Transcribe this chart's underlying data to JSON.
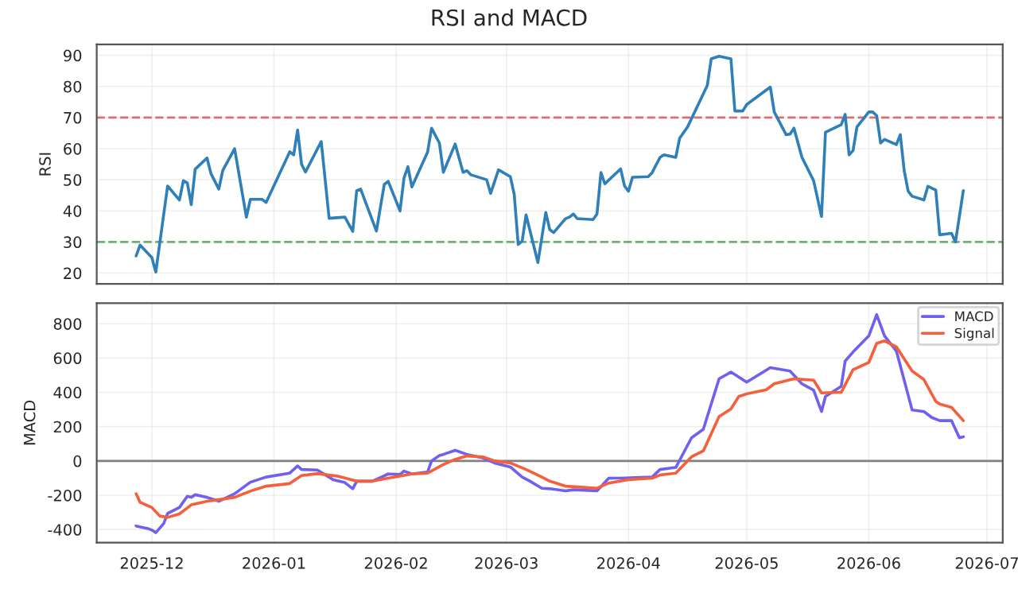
{
  "chart_data": [
    {
      "type": "line",
      "title": "RSI and MACD",
      "ylabel": "RSI",
      "grid": true,
      "tick_labels": "y",
      "xlim": [
        "2025-11-17",
        "2026-07-05"
      ],
      "ylim": [
        16.5,
        93.5
      ],
      "yticks": [
        20,
        30,
        40,
        50,
        60,
        70,
        80,
        90
      ],
      "xticks": [
        {
          "value": "2025-12-01",
          "label": null
        },
        {
          "value": "2026-01-01",
          "label": null
        },
        {
          "value": "2026-02-01",
          "label": null
        },
        {
          "value": "2026-03-01",
          "label": null
        },
        {
          "value": "2026-04-01",
          "label": null
        },
        {
          "value": "2026-05-01",
          "label": null
        },
        {
          "value": "2026-06-01",
          "label": null
        },
        {
          "value": "2026-07-01",
          "label": null
        }
      ],
      "ref_lines": [
        {
          "axis": "y",
          "value": 70,
          "color": "#d9706f",
          "line_style": "dashed"
        },
        {
          "axis": "y",
          "value": 30,
          "color": "#6fb06f",
          "line_style": "dashed"
        }
      ],
      "series": [
        {
          "color": "#2f80b8",
          "x": [
            "2025-11-27",
            "2025-11-28",
            "2025-12-01",
            "2025-12-02",
            "2025-12-05",
            "2025-12-08",
            "2025-12-09",
            "2025-12-10",
            "2025-12-11",
            "2025-12-12",
            "2025-12-15",
            "2025-12-16",
            "2025-12-18",
            "2025-12-19",
            "2025-12-22",
            "2025-12-25",
            "2025-12-26",
            "2025-12-29",
            "2025-12-30",
            "2026-01-05",
            "2026-01-06",
            "2026-01-07",
            "2026-01-08",
            "2026-01-09",
            "2026-01-13",
            "2026-01-15",
            "2026-01-19",
            "2026-01-21",
            "2026-01-22",
            "2026-01-23",
            "2026-01-27",
            "2026-01-29",
            "2026-01-30",
            "2026-02-02",
            "2026-02-03",
            "2026-02-04",
            "2026-02-05",
            "2026-02-09",
            "2026-02-10",
            "2026-02-12",
            "2026-02-13",
            "2026-02-16",
            "2026-02-18",
            "2026-02-19",
            "2026-02-20",
            "2026-02-24",
            "2026-02-25",
            "2026-02-27",
            "2026-03-02",
            "2026-03-03",
            "2026-03-04",
            "2026-03-05",
            "2026-03-06",
            "2026-03-09",
            "2026-03-11",
            "2026-03-12",
            "2026-03-13",
            "2026-03-16",
            "2026-03-17",
            "2026-03-18",
            "2026-03-19",
            "2026-03-23",
            "2026-03-24",
            "2026-03-25",
            "2026-03-26",
            "2026-03-30",
            "2026-03-31",
            "2026-04-01",
            "2026-04-02",
            "2026-04-06",
            "2026-04-07",
            "2026-04-09",
            "2026-04-10",
            "2026-04-13",
            "2026-04-14",
            "2026-04-16",
            "2026-04-21",
            "2026-04-22",
            "2026-04-24",
            "2026-04-27",
            "2026-04-28",
            "2026-04-30",
            "2026-05-01",
            "2026-05-07",
            "2026-05-08",
            "2026-05-11",
            "2026-05-12",
            "2026-05-13",
            "2026-05-15",
            "2026-05-18",
            "2026-05-20",
            "2026-05-21",
            "2026-05-25",
            "2026-05-26",
            "2026-05-27",
            "2026-05-28",
            "2026-05-29",
            "2026-06-01",
            "2026-06-02",
            "2026-06-03",
            "2026-06-04",
            "2026-06-05",
            "2026-06-08",
            "2026-06-09",
            "2026-06-10",
            "2026-06-11",
            "2026-06-12",
            "2026-06-15",
            "2026-06-16",
            "2026-06-18",
            "2026-06-19",
            "2026-06-22",
            "2026-06-23",
            "2026-06-25"
          ],
          "values": [
            25.5,
            29,
            25,
            20.3,
            48,
            43.5,
            49.7,
            49,
            42,
            53.4,
            57,
            52,
            47,
            53,
            60,
            38,
            43.7,
            43.7,
            42.7,
            59,
            58,
            66,
            55,
            52.5,
            62.3,
            37.6,
            38,
            33.4,
            46.5,
            47,
            33.5,
            48.5,
            49.5,
            40,
            50.5,
            54.2,
            47.7,
            58.9,
            66.6,
            61.8,
            52.4,
            61.5,
            52.4,
            52.9,
            51.6,
            50,
            45.6,
            53.2,
            51,
            45.2,
            29.2,
            30.3,
            38.7,
            23.4,
            39.5,
            34,
            33,
            37.5,
            38,
            39,
            37.5,
            37.2,
            39,
            52.3,
            48.7,
            53.5,
            48,
            46.3,
            50.8,
            51,
            52.3,
            57.2,
            58,
            57.2,
            63.4,
            67,
            80.3,
            88.9,
            89.7,
            88.9,
            72.1,
            72.1,
            74.2,
            79.8,
            71.8,
            64.5,
            64.7,
            66.6,
            57.3,
            49.7,
            38.2,
            65.3,
            67.7,
            71,
            58,
            59.4,
            67,
            71.8,
            71.8,
            70.6,
            61.8,
            63,
            61.3,
            64.5,
            52.8,
            46.3,
            44.7,
            43.5,
            47.9,
            46.7,
            32.3,
            32.8,
            30,
            46.5
          ]
        }
      ]
    },
    {
      "type": "line",
      "ylabel": "MACD",
      "grid": true,
      "legend": "top right",
      "xlim": [
        "2025-11-17",
        "2026-07-05"
      ],
      "ylim": [
        -476,
        920
      ],
      "yticks": [
        -400,
        -200,
        0,
        200,
        400,
        600,
        800
      ],
      "xticks": [
        {
          "value": "2025-12-01",
          "label": "2025-12"
        },
        {
          "value": "2026-01-01",
          "label": "2026-01"
        },
        {
          "value": "2026-02-01",
          "label": "2026-02"
        },
        {
          "value": "2026-03-01",
          "label": "2026-03"
        },
        {
          "value": "2026-04-01",
          "label": "2026-04"
        },
        {
          "value": "2026-05-01",
          "label": "2026-05"
        },
        {
          "value": "2026-06-01",
          "label": "2026-06"
        },
        {
          "value": "2026-07-01",
          "label": "2026-07"
        }
      ],
      "ref_lines": [
        {
          "axis": "y",
          "value": 0,
          "color": "#808080",
          "line_style": "solid"
        }
      ],
      "series": [
        {
          "name": "MACD",
          "color": "#7060f0",
          "x": [
            "2025-11-27",
            "2025-11-30",
            "2025-12-01",
            "2025-12-02",
            "2025-12-04",
            "2025-12-05",
            "2025-12-08",
            "2025-12-10",
            "2025-12-11",
            "2025-12-12",
            "2025-12-15",
            "2025-12-18",
            "2025-12-22",
            "2025-12-26",
            "2025-12-30",
            "2026-01-05",
            "2026-01-07",
            "2026-01-08",
            "2026-01-12",
            "2026-01-16",
            "2026-01-19",
            "2026-01-21",
            "2026-01-22",
            "2026-01-26",
            "2026-01-30",
            "2026-02-02",
            "2026-02-03",
            "2026-02-05",
            "2026-02-09",
            "2026-02-10",
            "2026-02-12",
            "2026-02-13",
            "2026-02-16",
            "2026-02-19",
            "2026-02-23",
            "2026-02-26",
            "2026-03-02",
            "2026-03-05",
            "2026-03-07",
            "2026-03-10",
            "2026-03-12",
            "2026-03-16",
            "2026-03-18",
            "2026-03-24",
            "2026-03-27",
            "2026-03-30",
            "2026-04-07",
            "2026-04-09",
            "2026-04-13",
            "2026-04-17",
            "2026-04-20",
            "2026-04-24",
            "2026-04-27",
            "2026-05-01",
            "2026-05-07",
            "2026-05-12",
            "2026-05-15",
            "2026-05-18",
            "2026-05-20",
            "2026-05-21",
            "2026-05-25",
            "2026-05-26",
            "2026-05-28",
            "2026-06-01",
            "2026-06-03",
            "2026-06-05",
            "2026-06-08",
            "2026-06-12",
            "2026-06-15",
            "2026-06-17",
            "2026-06-19",
            "2026-06-22",
            "2026-06-24",
            "2026-06-25"
          ],
          "values": [
            -379,
            -394,
            -403,
            -418,
            -365,
            -306,
            -271,
            -206,
            -212,
            -197,
            -212,
            -235,
            -191,
            -124,
            -94,
            -71,
            -29,
            -50,
            -53,
            -109,
            -126,
            -162,
            -118,
            -118,
            -76,
            -79,
            -59,
            -76,
            -65,
            0,
            32,
            38,
            62,
            38,
            18,
            -12,
            -35,
            -94,
            -118,
            -159,
            -162,
            -174,
            -168,
            -174,
            -100,
            -100,
            -94,
            -50,
            -38,
            135,
            185,
            479,
            518,
            459,
            544,
            524,
            450,
            412,
            288,
            376,
            435,
            582,
            635,
            729,
            853,
            729,
            641,
            297,
            288,
            253,
            235,
            235,
            135,
            141
          ]
        },
        {
          "name": "Signal",
          "color": "#f5603c",
          "x": [
            "2025-11-27",
            "2025-11-28",
            "2025-12-01",
            "2025-12-03",
            "2025-12-05",
            "2025-12-08",
            "2025-12-11",
            "2025-12-15",
            "2025-12-18",
            "2025-12-22",
            "2025-12-26",
            "2025-12-30",
            "2026-01-05",
            "2026-01-08",
            "2026-01-12",
            "2026-01-17",
            "2026-01-22",
            "2026-01-26",
            "2026-01-30",
            "2026-02-05",
            "2026-02-09",
            "2026-02-13",
            "2026-02-16",
            "2026-02-19",
            "2026-02-23",
            "2026-02-26",
            "2026-03-02",
            "2026-03-06",
            "2026-03-10",
            "2026-03-12",
            "2026-03-16",
            "2026-03-20",
            "2026-03-24",
            "2026-03-27",
            "2026-04-01",
            "2026-04-07",
            "2026-04-09",
            "2026-04-13",
            "2026-04-17",
            "2026-04-20",
            "2026-04-24",
            "2026-04-27",
            "2026-04-29",
            "2026-05-01",
            "2026-05-06",
            "2026-05-08",
            "2026-05-13",
            "2026-05-18",
            "2026-05-20",
            "2026-05-25",
            "2026-05-28",
            "2026-06-01",
            "2026-06-03",
            "2026-06-05",
            "2026-06-08",
            "2026-06-12",
            "2026-06-15",
            "2026-06-18",
            "2026-06-19",
            "2026-06-22",
            "2026-06-25"
          ],
          "values": [
            -191,
            -241,
            -271,
            -321,
            -329,
            -309,
            -256,
            -235,
            -226,
            -212,
            -176,
            -147,
            -132,
            -85,
            -74,
            -88,
            -118,
            -118,
            -100,
            -76,
            -71,
            -21,
            9,
            29,
            24,
            0,
            -12,
            -50,
            -94,
            -118,
            -147,
            -153,
            -159,
            -129,
            -109,
            -100,
            -82,
            -71,
            24,
            59,
            259,
            303,
            376,
            391,
            415,
            450,
            479,
            471,
            397,
            400,
            532,
            574,
            685,
            700,
            665,
            524,
            474,
            347,
            332,
            312,
            235
          ]
        }
      ]
    }
  ]
}
